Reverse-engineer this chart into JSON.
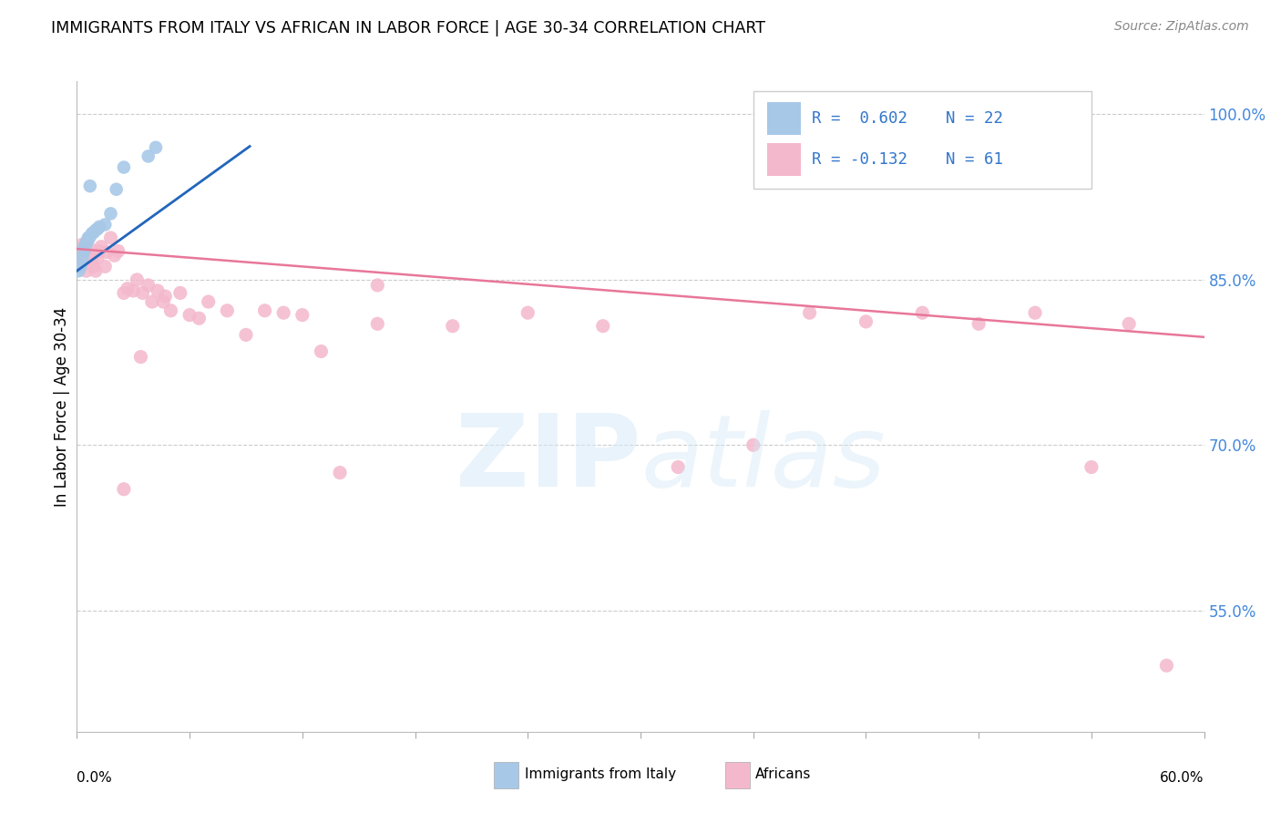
{
  "title": "IMMIGRANTS FROM ITALY VS AFRICAN IN LABOR FORCE | AGE 30-34 CORRELATION CHART",
  "source": "Source: ZipAtlas.com",
  "ylabel": "In Labor Force | Age 30-34",
  "xmin": 0.0,
  "xmax": 0.6,
  "ymin": 0.44,
  "ymax": 1.03,
  "yticks": [
    0.55,
    0.7,
    0.85,
    1.0
  ],
  "ytick_labels": [
    "55.0%",
    "70.0%",
    "85.0%",
    "100.0%"
  ],
  "italy_color": "#a8c8e8",
  "african_color": "#f4b8cc",
  "italy_line_color": "#2266bb",
  "african_line_color": "#e87799",
  "italy_x": [
    0.001,
    0.002,
    0.003,
    0.004,
    0.004,
    0.005,
    0.005,
    0.006,
    0.006,
    0.007,
    0.008,
    0.009,
    0.01,
    0.011,
    0.012,
    0.015,
    0.018,
    0.021,
    0.025,
    0.038,
    0.042,
    0.007
  ],
  "italy_y": [
    0.858,
    0.862,
    0.87,
    0.876,
    0.88,
    0.882,
    0.884,
    0.886,
    0.888,
    0.889,
    0.892,
    0.893,
    0.895,
    0.896,
    0.898,
    0.9,
    0.91,
    0.932,
    0.952,
    0.962,
    0.97,
    0.935
  ],
  "african_x": [
    0.001,
    0.002,
    0.002,
    0.003,
    0.003,
    0.004,
    0.004,
    0.005,
    0.005,
    0.006,
    0.007,
    0.008,
    0.009,
    0.01,
    0.011,
    0.012,
    0.013,
    0.015,
    0.016,
    0.018,
    0.02,
    0.022,
    0.025,
    0.027,
    0.03,
    0.032,
    0.035,
    0.038,
    0.04,
    0.043,
    0.046,
    0.05,
    0.055,
    0.06,
    0.065,
    0.07,
    0.08,
    0.09,
    0.1,
    0.11,
    0.12,
    0.13,
    0.14,
    0.16,
    0.2,
    0.24,
    0.28,
    0.32,
    0.36,
    0.39,
    0.42,
    0.45,
    0.48,
    0.51,
    0.54,
    0.56,
    0.58,
    0.16,
    0.025,
    0.034,
    0.047
  ],
  "african_y": [
    0.875,
    0.87,
    0.862,
    0.878,
    0.882,
    0.865,
    0.88,
    0.858,
    0.87,
    0.875,
    0.878,
    0.868,
    0.862,
    0.858,
    0.87,
    0.876,
    0.88,
    0.862,
    0.875,
    0.888,
    0.872,
    0.876,
    0.838,
    0.842,
    0.84,
    0.85,
    0.838,
    0.845,
    0.83,
    0.84,
    0.83,
    0.822,
    0.838,
    0.818,
    0.815,
    0.83,
    0.822,
    0.8,
    0.822,
    0.82,
    0.818,
    0.785,
    0.675,
    0.81,
    0.808,
    0.82,
    0.808,
    0.68,
    0.7,
    0.82,
    0.812,
    0.82,
    0.81,
    0.82,
    0.68,
    0.81,
    0.5,
    0.845,
    0.66,
    0.78,
    0.835
  ],
  "italy_line_x0": 0.0,
  "italy_line_x1": 0.092,
  "italy_line_y0": 0.858,
  "italy_line_y1": 0.971,
  "african_line_x0": 0.0,
  "african_line_x1": 0.6,
  "african_line_y0": 0.878,
  "african_line_y1": 0.798,
  "background_color": "#ffffff",
  "grid_color": "#cccccc"
}
